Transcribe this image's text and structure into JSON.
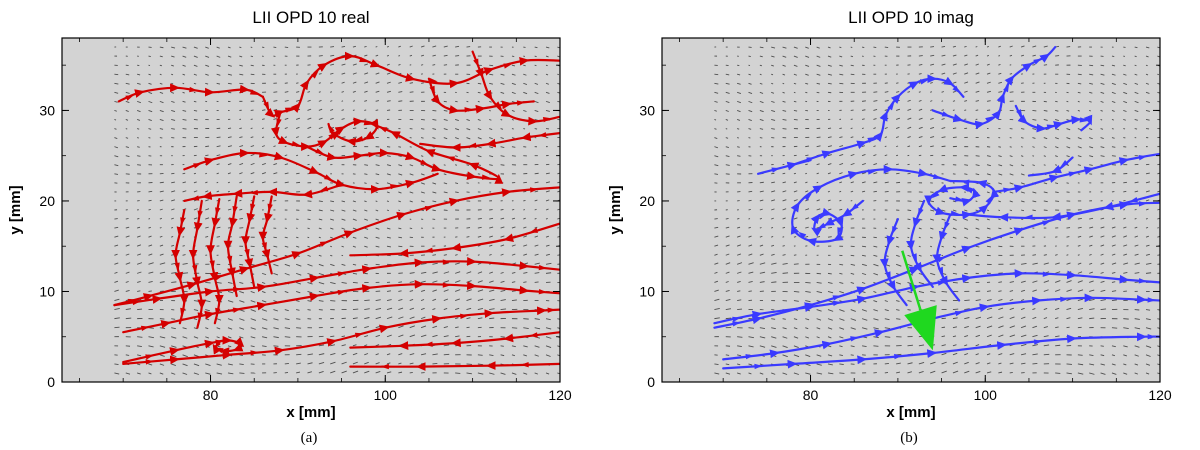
{
  "chart_data": [
    {
      "type": "streamline",
      "title": "LII   OPD 10 real",
      "xlabel": "x [mm]",
      "ylabel": "y [mm]",
      "caption": "(a)",
      "xlim": [
        63,
        120
      ],
      "ylim": [
        0,
        38
      ],
      "xticks": [
        80,
        100,
        120
      ],
      "yticks": [
        0,
        10,
        20,
        30
      ],
      "grid": false,
      "background_color": "#d3d3d3",
      "stream_color": "#d40000",
      "vector_color": "#222222",
      "vector_region": {
        "x": [
          69,
          120
        ],
        "y": [
          1,
          37
        ]
      },
      "streamlines": [
        [
          [
            69.5,
            31
          ],
          [
            72,
            32
          ],
          [
            76,
            32.5
          ],
          [
            80,
            32
          ],
          [
            84,
            32.3
          ],
          [
            86,
            31.5
          ]
        ],
        [
          [
            86,
            31.5
          ],
          [
            87,
            29.5
          ],
          [
            88,
            29.8
          ],
          [
            90,
            30.5
          ],
          [
            91,
            33
          ],
          [
            93,
            35
          ],
          [
            96,
            36
          ],
          [
            99,
            35
          ],
          [
            103,
            33.5
          ],
          [
            108,
            33
          ],
          [
            112,
            34.5
          ],
          [
            116,
            35.5
          ],
          [
            120,
            35.5
          ]
        ],
        [
          [
            88,
            29.8
          ],
          [
            87.5,
            27.5
          ],
          [
            88.5,
            26.5
          ],
          [
            91,
            26
          ],
          [
            93,
            26.5
          ],
          [
            95,
            28
          ],
          [
            97,
            28.8
          ],
          [
            99,
            28.3
          ],
          [
            98,
            27
          ],
          [
            96,
            26.6
          ],
          [
            94,
            27.5
          ],
          [
            93.5,
            28.5
          ]
        ],
        [
          [
            91,
            26
          ],
          [
            94,
            24.8
          ],
          [
            97,
            25
          ],
          [
            100,
            25.3
          ],
          [
            103,
            24.8
          ],
          [
            106,
            23.5
          ],
          [
            110,
            22.7
          ],
          [
            113,
            22.5
          ],
          [
            110,
            24
          ],
          [
            105,
            25.5
          ],
          [
            101,
            27.5
          ],
          [
            98.5,
            28.5
          ]
        ],
        [
          [
            77,
            23.5
          ],
          [
            80,
            24.5
          ],
          [
            84,
            25.3
          ],
          [
            88,
            24.8
          ],
          [
            92,
            23.2
          ],
          [
            95,
            21.8
          ],
          [
            99,
            21.3
          ],
          [
            103,
            22
          ],
          [
            106,
            23
          ]
        ],
        [
          [
            95,
            21.8
          ],
          [
            91,
            20.7
          ],
          [
            87,
            21
          ],
          [
            83,
            20.8
          ],
          [
            79.5,
            20.5
          ],
          [
            77,
            20
          ]
        ],
        [
          [
            69,
            8.5
          ],
          [
            73,
            9.5
          ],
          [
            78,
            10.8
          ],
          [
            84,
            12.5
          ],
          [
            90,
            14.2
          ],
          [
            96,
            16.5
          ],
          [
            102,
            18.5
          ],
          [
            108,
            20
          ],
          [
            114,
            21
          ],
          [
            120,
            21.5
          ]
        ],
        [
          [
            69,
            8.5
          ],
          [
            74,
            9.2
          ],
          [
            80,
            10
          ],
          [
            86,
            10.5
          ],
          [
            92,
            11.5
          ],
          [
            98,
            12.5
          ],
          [
            104,
            13.2
          ],
          [
            110,
            13.3
          ],
          [
            116,
            12.8
          ],
          [
            120,
            12.4
          ]
        ],
        [
          [
            70,
            5.5
          ],
          [
            75,
            6.5
          ],
          [
            80,
            7.5
          ],
          [
            86,
            8.5
          ],
          [
            92,
            9.5
          ],
          [
            98,
            10.4
          ],
          [
            104,
            10.8
          ],
          [
            110,
            10.6
          ],
          [
            116,
            10.1
          ],
          [
            120,
            9.8
          ]
        ],
        [
          [
            70,
            2
          ],
          [
            76,
            2.5
          ],
          [
            82,
            3
          ],
          [
            88,
            3.5
          ],
          [
            94,
            4.5
          ],
          [
            100,
            6
          ],
          [
            106,
            7
          ],
          [
            112,
            7.6
          ],
          [
            118,
            7.9
          ],
          [
            120,
            8
          ]
        ],
        [
          [
            70,
            2.2
          ],
          [
            76,
            3.5
          ],
          [
            80,
            4.3
          ],
          [
            82,
            4.6
          ],
          [
            83.5,
            4.2
          ],
          [
            83,
            3.6
          ],
          [
            81.5,
            3.4
          ],
          [
            80.5,
            3.8
          ],
          [
            81,
            4.2
          ]
        ],
        [
          [
            77,
            19
          ],
          [
            76.5,
            16.5
          ],
          [
            76,
            14
          ],
          [
            76.5,
            11.5
          ],
          [
            77,
            9
          ],
          [
            76.5,
            6.5
          ]
        ],
        [
          [
            79,
            20
          ],
          [
            78.5,
            17
          ],
          [
            78,
            14
          ],
          [
            78.5,
            11
          ],
          [
            79,
            8.5
          ],
          [
            78.5,
            6
          ]
        ],
        [
          [
            81,
            20.2
          ],
          [
            80.5,
            17.5
          ],
          [
            80,
            14.5
          ],
          [
            80.5,
            11.5
          ],
          [
            81,
            9
          ],
          [
            80.5,
            6.5
          ]
        ],
        [
          [
            83,
            20.5
          ],
          [
            82.5,
            17.5
          ],
          [
            82,
            15
          ],
          [
            82.5,
            12
          ],
          [
            83,
            9.5
          ]
        ],
        [
          [
            85,
            20.5
          ],
          [
            84.5,
            18
          ],
          [
            84,
            15.5
          ],
          [
            84.5,
            13
          ],
          [
            85,
            10.5
          ]
        ],
        [
          [
            87,
            20.5
          ],
          [
            86.5,
            18
          ],
          [
            86,
            16
          ],
          [
            86.5,
            14
          ],
          [
            87,
            12
          ]
        ],
        [
          [
            110,
            36.5
          ],
          [
            111,
            34
          ],
          [
            112,
            31.5
          ],
          [
            114,
            29.5
          ],
          [
            117,
            28.8
          ],
          [
            120,
            29.3
          ]
        ],
        [
          [
            105,
            33.5
          ],
          [
            106,
            31
          ],
          [
            108,
            30
          ],
          [
            111,
            30.2
          ],
          [
            114,
            30.7
          ],
          [
            117,
            31
          ]
        ],
        [
          [
            120,
            27.5
          ],
          [
            116,
            27
          ],
          [
            112,
            26.3
          ],
          [
            108,
            25.9
          ],
          [
            104,
            26.3
          ]
        ],
        [
          [
            120,
            17.5
          ],
          [
            114,
            15.8
          ],
          [
            108,
            14.8
          ],
          [
            102,
            14.2
          ],
          [
            96,
            14
          ]
        ],
        [
          [
            120,
            5.5
          ],
          [
            114,
            4.8
          ],
          [
            108,
            4.3
          ],
          [
            102,
            4
          ],
          [
            96,
            3.8
          ]
        ],
        [
          [
            120,
            2
          ],
          [
            112,
            1.8
          ],
          [
            104,
            1.7
          ],
          [
            96,
            1.7
          ]
        ]
      ]
    },
    {
      "type": "streamline",
      "title": "LII   OPD 10 imag",
      "xlabel": "x [mm]",
      "ylabel": "y [mm]",
      "caption": "(b)",
      "xlim": [
        63,
        120
      ],
      "ylim": [
        0,
        38
      ],
      "xticks": [
        80,
        100,
        120
      ],
      "yticks": [
        0,
        10,
        20,
        30
      ],
      "grid": false,
      "background_color": "#d3d3d3",
      "stream_color": "#3a3aff",
      "vector_color": "#222222",
      "vector_region": {
        "x": [
          69,
          120
        ],
        "y": [
          1,
          37
        ]
      },
      "streamlines": [
        [
          [
            78,
            24
          ],
          [
            82,
            25.3
          ],
          [
            86,
            26.4
          ],
          [
            88,
            27.3
          ],
          [
            88.6,
            29.5
          ],
          [
            90,
            31.5
          ],
          [
            92,
            33
          ],
          [
            94,
            33.5
          ],
          [
            96,
            33
          ],
          [
            97.5,
            31.5
          ]
        ],
        [
          [
            94,
            30
          ],
          [
            97,
            29
          ],
          [
            99.5,
            28.5
          ],
          [
            101.5,
            29.7
          ],
          [
            102,
            31.5
          ],
          [
            103,
            33.5
          ],
          [
            105,
            35
          ],
          [
            107,
            36
          ],
          [
            108,
            37
          ]
        ],
        [
          [
            103.5,
            30.5
          ],
          [
            104.5,
            28.8
          ],
          [
            106.5,
            28
          ],
          [
            108.5,
            28.5
          ],
          [
            110.5,
            29
          ],
          [
            112,
            28.8
          ],
          [
            111,
            27.8
          ]
        ],
        [
          [
            74,
            23
          ],
          [
            78,
            24
          ],
          [
            80,
            24.5
          ]
        ],
        [
          [
            86,
            20
          ],
          [
            84,
            18.5
          ],
          [
            82,
            17.5
          ],
          [
            80.5,
            16.8
          ],
          [
            80.8,
            18.2
          ],
          [
            82,
            18.6
          ],
          [
            83.5,
            17.5
          ],
          [
            83,
            15.8
          ],
          [
            80,
            15.6
          ],
          [
            78,
            17
          ],
          [
            78.5,
            19.5
          ],
          [
            81,
            21.5
          ],
          [
            85,
            23
          ],
          [
            89,
            23.5
          ],
          [
            93,
            23
          ],
          [
            96,
            22.2
          ]
        ],
        [
          [
            96,
            20.3
          ],
          [
            98,
            20
          ],
          [
            98.8,
            21
          ],
          [
            97.5,
            21.5
          ],
          [
            95,
            21.2
          ],
          [
            93.5,
            20
          ],
          [
            95,
            18.7
          ],
          [
            98,
            18.5
          ],
          [
            100,
            19.3
          ],
          [
            101,
            21
          ],
          [
            99.5,
            22
          ],
          [
            96,
            22.2
          ]
        ],
        [
          [
            101,
            21
          ],
          [
            104,
            21.5
          ],
          [
            108,
            22.6
          ],
          [
            112,
            23.5
          ],
          [
            116,
            24.5
          ],
          [
            120,
            25.2
          ]
        ],
        [
          [
            69,
            6
          ],
          [
            74,
            7
          ],
          [
            80,
            8.5
          ],
          [
            86,
            10.3
          ],
          [
            92,
            12.5
          ],
          [
            98,
            14.8
          ],
          [
            104,
            16.8
          ],
          [
            110,
            18.5
          ],
          [
            116,
            19.6
          ],
          [
            120,
            19.8
          ]
        ],
        [
          [
            69,
            6.5
          ],
          [
            74,
            7.5
          ],
          [
            80,
            8.3
          ],
          [
            86,
            9.2
          ],
          [
            92,
            10.5
          ],
          [
            98,
            11.5
          ],
          [
            104,
            12
          ],
          [
            110,
            11.8
          ],
          [
            116,
            11.3
          ],
          [
            120,
            11
          ]
        ],
        [
          [
            70,
            2.5
          ],
          [
            76,
            3.2
          ],
          [
            82,
            4.2
          ],
          [
            88,
            5.5
          ],
          [
            94,
            7
          ],
          [
            100,
            8.3
          ],
          [
            106,
            9
          ],
          [
            112,
            9.3
          ],
          [
            118,
            9.1
          ],
          [
            120,
            9
          ]
        ],
        [
          [
            70,
            1.5
          ],
          [
            78,
            2
          ],
          [
            86,
            2.5
          ],
          [
            94,
            3.2
          ],
          [
            102,
            4.1
          ],
          [
            110,
            4.8
          ],
          [
            118,
            5
          ],
          [
            120,
            5
          ]
        ],
        [
          [
            90,
            18
          ],
          [
            89,
            15.5
          ],
          [
            88.5,
            13
          ],
          [
            89.5,
            10.5
          ],
          [
            91,
            8.5
          ]
        ],
        [
          [
            93,
            20
          ],
          [
            92,
            17.5
          ],
          [
            91.5,
            15
          ],
          [
            92.5,
            12.5
          ],
          [
            94,
            10.5
          ]
        ],
        [
          [
            96,
            18.5
          ],
          [
            95,
            16
          ],
          [
            94.5,
            13.5
          ],
          [
            95.5,
            11
          ],
          [
            97,
            9
          ]
        ],
        [
          [
            120,
            20.8
          ],
          [
            114,
            19.3
          ],
          [
            108,
            18.2
          ],
          [
            102,
            18.2
          ],
          [
            98,
            18.5
          ]
        ],
        [
          [
            110,
            24.8
          ],
          [
            108,
            23.3
          ],
          [
            105,
            22.8
          ]
        ]
      ],
      "annotations": [
        {
          "type": "arrow",
          "color": "#1fd81f",
          "from": [
            90.5,
            14.5
          ],
          "to": [
            94,
            3.5
          ]
        }
      ]
    }
  ]
}
